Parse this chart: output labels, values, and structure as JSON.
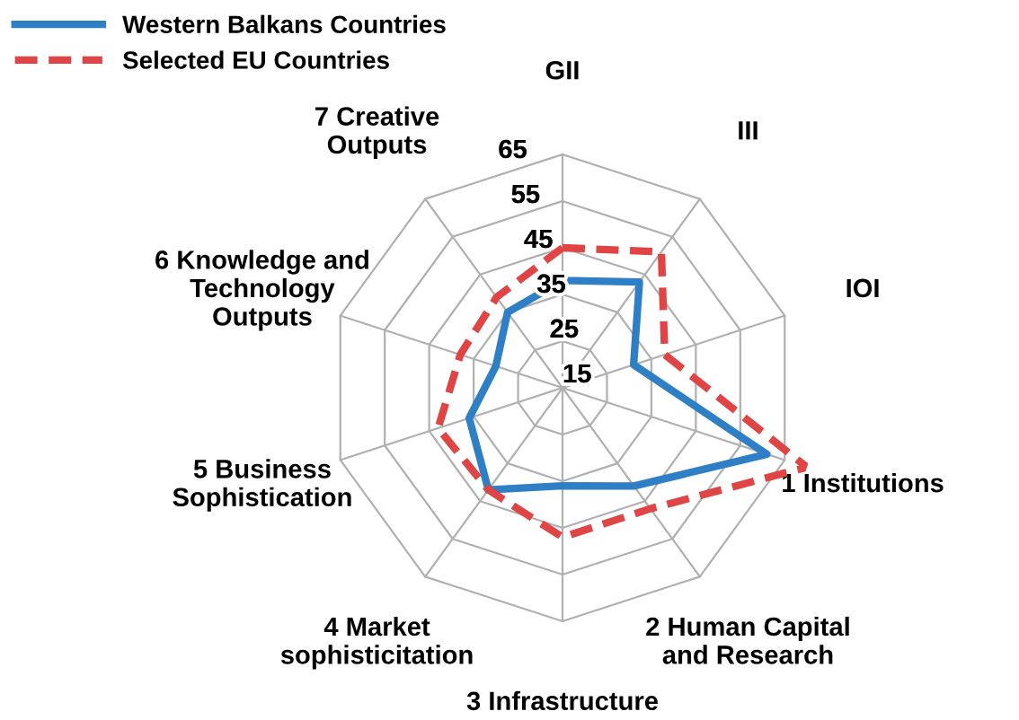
{
  "chart_data": {
    "type": "radar",
    "categories": [
      "GII",
      "III",
      "IOI",
      "1 Institutions",
      "2 Human Capital\nand Research",
      "3 Infrastructure",
      "4 Market\nsophisticitation",
      "5 Business\nSophistication",
      "6 Knowledge and\nTechnology\nOutputs",
      "7 Creative\nOutputs"
    ],
    "series": [
      {
        "name": "Western Balkans Countries",
        "color": "#2f7fc6",
        "line_style": "solid",
        "values": [
          38,
          43,
          31,
          61,
          41,
          36,
          42,
          36,
          30,
          35
        ]
      },
      {
        "name": "Selected EU Countries",
        "color": "#e04545",
        "line_style": "dashed",
        "values": [
          45,
          51,
          38,
          70,
          47,
          47,
          42,
          43,
          38,
          39
        ]
      }
    ],
    "ylim": [
      15,
      70
    ],
    "yticks": [
      15,
      25,
      35,
      45,
      55,
      65
    ],
    "grid": true,
    "legend": "top left"
  }
}
